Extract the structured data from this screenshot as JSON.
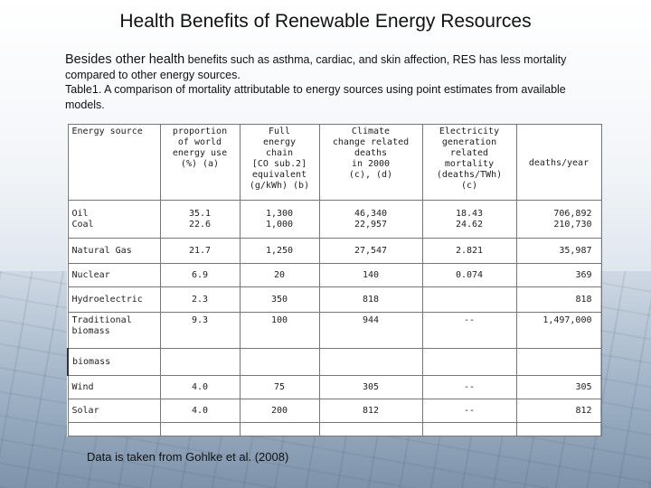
{
  "slide": {
    "title": "Health Benefits of Renewable Energy Resources",
    "intro_lead": "Besides other health",
    "intro_rest": " benefits such as asthma, cardiac, and skin affection, RES has less mortality compared to other energy sources.",
    "caption": "Table1. A comparison of mortality attributable to energy sources using point estimates from available models.",
    "footer": "Data is taken from Gohlke et al. (2008)"
  },
  "table": {
    "headers": [
      [
        "Energy source"
      ],
      [
        "proportion",
        "of world",
        "energy use",
        "(%) (a)"
      ],
      [
        "Full",
        "energy",
        "chain",
        "[CO sub.2]",
        "equivalent",
        "(g/kWh) (b)"
      ],
      [
        "Climate",
        "change related",
        "deaths",
        "in 2000",
        "(c), (d)"
      ],
      [
        "Electricity",
        "generation",
        "related",
        "mortality",
        "(deaths/TWh)",
        "(c)"
      ],
      [
        "deaths/year"
      ]
    ],
    "rows": {
      "oil_coal": {
        "source": [
          "Oil",
          "Coal"
        ],
        "share": [
          "35.1",
          "22.6"
        ],
        "co2": [
          "1,300",
          "1,000"
        ],
        "climate": [
          "46,340",
          "22,957"
        ],
        "mortality": [
          "18.43",
          "24.62"
        ],
        "deaths": [
          "706,892",
          "210,730"
        ]
      },
      "gas": {
        "source": "Natural Gas",
        "share": "21.7",
        "co2": "1,250",
        "climate": "27,547",
        "mortality": "2.821",
        "deaths": "35,987"
      },
      "nuclear": {
        "source": "Nuclear",
        "share": "6.9",
        "co2": "20",
        "climate": "140",
        "mortality": "0.074",
        "deaths": "369"
      },
      "hydro": {
        "source": "Hydroelectric",
        "share": "2.3",
        "co2": "350",
        "climate": "818",
        "mortality": "",
        "deaths": "818"
      },
      "traditional": {
        "source": "Traditional",
        "share": "9.3",
        "co2": "100",
        "climate": "944",
        "mortality": "--",
        "deaths": "1,497,000"
      },
      "biomass_word": "biomass",
      "biomass": {
        "source": "biomass",
        "share": "",
        "co2": "",
        "climate": "",
        "mortality": "",
        "deaths": ""
      },
      "wind": {
        "source": "Wind",
        "share": "4.0",
        "co2": "75",
        "climate": "305",
        "mortality": "--",
        "deaths": "305"
      },
      "solar": {
        "source": "Solar",
        "share": "4.0",
        "co2": "200",
        "climate": "812",
        "mortality": "--",
        "deaths": "812"
      }
    }
  }
}
